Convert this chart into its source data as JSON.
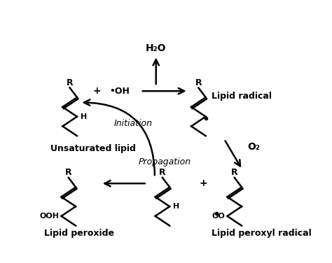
{
  "bg_color": "#ffffff",
  "line_color": "#000000",
  "fig_width": 4.74,
  "fig_height": 3.76,
  "dpi": 100,
  "labels": {
    "unsaturated_lipid": "Unsaturated lipid",
    "lipid_radical": "Lipid radical",
    "lipid_peroxide": "Lipid peroxide",
    "lipid_peroxyl": "Lipid peroxyl radical",
    "initiation": "Initiation",
    "propagation": "Propagation",
    "h2o": "H₂O",
    "oh": "•OH",
    "o2": "O₂",
    "plus1": "+",
    "plus2": "+"
  }
}
